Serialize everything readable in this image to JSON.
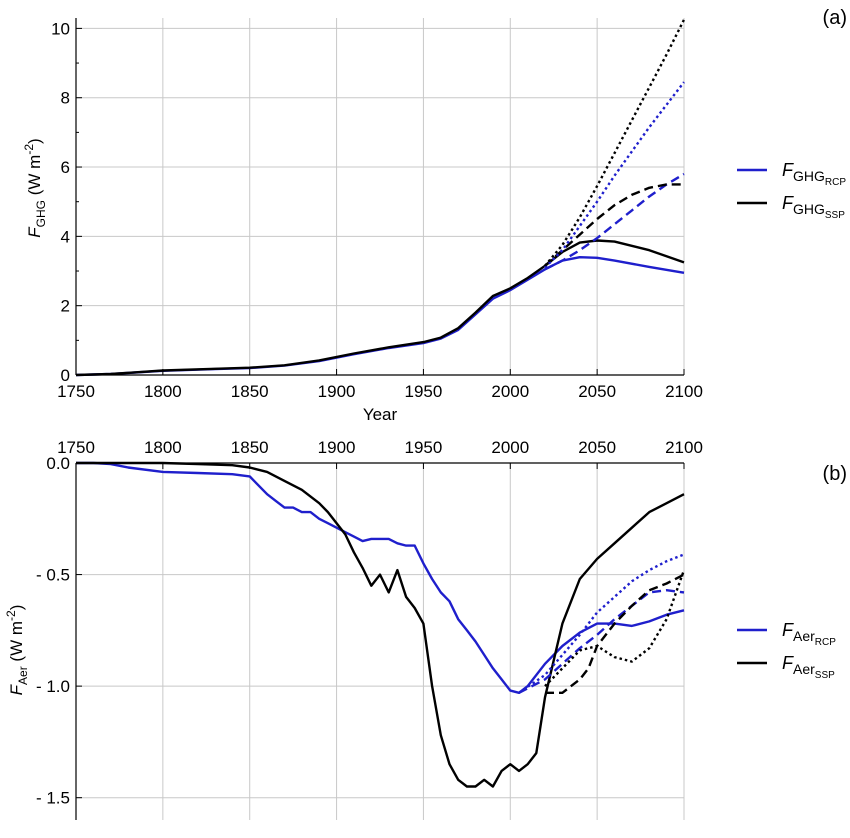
{
  "chart_data": [
    {
      "type": "line",
      "panel_label": "(a)",
      "xlabel": "Year",
      "ylabel": "F_GHG (W m^-2)",
      "ylabel_parts": {
        "main": "F",
        "sub": "GHG",
        "unit": " (W m",
        "sup": "-2",
        "close": ")"
      },
      "xlim": [
        1750,
        2100
      ],
      "ylim": [
        0,
        10.3
      ],
      "x_ticks": [
        "1750",
        "1800",
        "1850",
        "1900",
        "1950",
        "2000",
        "2050",
        "2100"
      ],
      "y_ticks": [
        "0",
        "2",
        "4",
        "6",
        "8",
        "10"
      ],
      "grid": true,
      "legend_position": "right",
      "legend": [
        {
          "main": "F",
          "sub": "GHG",
          "subsub": "RCP",
          "color": "#1f1fcc"
        },
        {
          "main": "F",
          "sub": "GHG",
          "subsub": "SSP",
          "color": "#000000"
        }
      ],
      "series": [
        {
          "family": "RCP",
          "style": "solid",
          "color": "#1f1fcc",
          "x": [
            1750,
            1770,
            1800,
            1830,
            1850,
            1870,
            1890,
            1910,
            1930,
            1950,
            1960,
            1970,
            1980,
            1990,
            2000,
            2010,
            2020,
            2030,
            2040,
            2050,
            2060,
            2080,
            2100
          ],
          "y": [
            0,
            0.03,
            0.12,
            0.17,
            0.2,
            0.27,
            0.4,
            0.6,
            0.78,
            0.92,
            1.05,
            1.3,
            1.75,
            2.2,
            2.45,
            2.75,
            3.05,
            3.3,
            3.4,
            3.38,
            3.3,
            3.12,
            2.95
          ]
        },
        {
          "family": "SSP",
          "style": "solid",
          "color": "#000000",
          "x": [
            1750,
            1770,
            1800,
            1830,
            1850,
            1870,
            1890,
            1910,
            1930,
            1950,
            1960,
            1970,
            1980,
            1990,
            2000,
            2010,
            2020,
            2030,
            2040,
            2050,
            2060,
            2080,
            2100
          ],
          "y": [
            0,
            0.03,
            0.13,
            0.18,
            0.21,
            0.28,
            0.42,
            0.62,
            0.8,
            0.95,
            1.08,
            1.35,
            1.8,
            2.28,
            2.5,
            2.8,
            3.15,
            3.55,
            3.82,
            3.88,
            3.85,
            3.6,
            3.25
          ]
        },
        {
          "family": "RCP",
          "style": "dashed",
          "color": "#1f1fcc",
          "x": [
            2020,
            2030,
            2040,
            2050,
            2060,
            2070,
            2080,
            2090,
            2100
          ],
          "y": [
            3.05,
            3.3,
            3.6,
            3.95,
            4.35,
            4.75,
            5.15,
            5.5,
            5.8
          ]
        },
        {
          "family": "SSP",
          "style": "dashed",
          "color": "#000000",
          "x": [
            2020,
            2030,
            2040,
            2050,
            2060,
            2070,
            2080,
            2090,
            2100
          ],
          "y": [
            3.15,
            3.6,
            4.05,
            4.5,
            4.9,
            5.2,
            5.4,
            5.5,
            5.5
          ]
        },
        {
          "family": "RCP",
          "style": "dotted",
          "color": "#1f1fcc",
          "x": [
            2020,
            2030,
            2040,
            2050,
            2060,
            2070,
            2080,
            2090,
            2100
          ],
          "y": [
            3.1,
            3.6,
            4.3,
            5.0,
            5.75,
            6.45,
            7.15,
            7.8,
            8.45
          ]
        },
        {
          "family": "SSP",
          "style": "dotted",
          "color": "#000000",
          "x": [
            2020,
            2030,
            2040,
            2050,
            2060,
            2070,
            2080,
            2090,
            2100
          ],
          "y": [
            3.15,
            3.75,
            4.55,
            5.45,
            6.4,
            7.35,
            8.3,
            9.25,
            10.25
          ]
        }
      ]
    },
    {
      "type": "line",
      "panel_label": "(b)",
      "ylabel": "F_Aer (W m^-2)",
      "ylabel_parts": {
        "main": "F",
        "sub": "Aer",
        "unit": " (W m",
        "sup": "-2",
        "close": ")"
      },
      "xlim": [
        1750,
        2100
      ],
      "ylim": [
        -1.6,
        0.0
      ],
      "x_ticks": [
        "1750",
        "1800",
        "1850",
        "1900",
        "1950",
        "2000",
        "2050",
        "2100"
      ],
      "x_tick_position": "top",
      "y_ticks": [
        "0.0",
        "- 0.5",
        "- 1.0",
        "- 1.5"
      ],
      "y_tick_values": [
        0.0,
        -0.5,
        -1.0,
        -1.5
      ],
      "grid": true,
      "legend_position": "right",
      "legend": [
        {
          "main": "F",
          "sub": "Aer",
          "subsub": "RCP",
          "color": "#1f1fcc"
        },
        {
          "main": "F",
          "sub": "Aer",
          "subsub": "SSP",
          "color": "#000000"
        }
      ],
      "series": [
        {
          "family": "RCP",
          "style": "solid",
          "color": "#1f1fcc",
          "x": [
            1750,
            1760,
            1770,
            1780,
            1800,
            1820,
            1840,
            1850,
            1855,
            1860,
            1865,
            1870,
            1875,
            1880,
            1885,
            1890,
            1895,
            1900,
            1905,
            1910,
            1915,
            1920,
            1925,
            1930,
            1935,
            1940,
            1945,
            1950,
            1955,
            1960,
            1965,
            1970,
            1975,
            1980,
            1985,
            1990,
            1995,
            2000,
            2005,
            2010,
            2020,
            2030,
            2040,
            2050,
            2060,
            2070,
            2080,
            2090,
            2100
          ],
          "y": [
            0,
            0,
            -0.005,
            -0.02,
            -0.04,
            -0.045,
            -0.05,
            -0.06,
            -0.1,
            -0.14,
            -0.17,
            -0.2,
            -0.2,
            -0.22,
            -0.22,
            -0.25,
            -0.27,
            -0.29,
            -0.31,
            -0.33,
            -0.35,
            -0.34,
            -0.34,
            -0.34,
            -0.36,
            -0.37,
            -0.37,
            -0.45,
            -0.52,
            -0.58,
            -0.62,
            -0.7,
            -0.75,
            -0.8,
            -0.86,
            -0.92,
            -0.97,
            -1.02,
            -1.03,
            -1.0,
            -0.9,
            -0.82,
            -0.76,
            -0.72,
            -0.72,
            -0.73,
            -0.71,
            -0.68,
            -0.66
          ]
        },
        {
          "family": "SSP",
          "style": "solid",
          "color": "#000000",
          "x": [
            1750,
            1780,
            1800,
            1820,
            1840,
            1850,
            1860,
            1870,
            1880,
            1890,
            1895,
            1900,
            1905,
            1910,
            1915,
            1920,
            1925,
            1930,
            1935,
            1940,
            1945,
            1950,
            1955,
            1960,
            1965,
            1970,
            1975,
            1980,
            1985,
            1990,
            1995,
            2000,
            2005,
            2010,
            2015,
            2020,
            2030,
            2040,
            2050,
            2060,
            2070,
            2080,
            2090,
            2100
          ],
          "y": [
            0,
            0,
            0,
            -0.005,
            -0.01,
            -0.02,
            -0.04,
            -0.08,
            -0.12,
            -0.18,
            -0.22,
            -0.27,
            -0.32,
            -0.4,
            -0.47,
            -0.55,
            -0.5,
            -0.58,
            -0.48,
            -0.6,
            -0.65,
            -0.72,
            -1.0,
            -1.22,
            -1.35,
            -1.42,
            -1.45,
            -1.45,
            -1.42,
            -1.45,
            -1.38,
            -1.35,
            -1.38,
            -1.35,
            -1.3,
            -1.05,
            -0.72,
            -0.52,
            -0.43,
            -0.36,
            -0.29,
            -0.22,
            -0.18,
            -0.14
          ]
        },
        {
          "family": "RCP",
          "style": "dashed",
          "color": "#1f1fcc",
          "x": [
            2005,
            2020,
            2030,
            2040,
            2050,
            2060,
            2070,
            2080,
            2090,
            2100
          ],
          "y": [
            -1.03,
            -0.97,
            -0.9,
            -0.83,
            -0.77,
            -0.7,
            -0.64,
            -0.58,
            -0.57,
            -0.58
          ]
        },
        {
          "family": "SSP",
          "style": "dashed",
          "color": "#000000",
          "x": [
            2020,
            2030,
            2040,
            2045,
            2050,
            2060,
            2070,
            2080,
            2090,
            2100
          ],
          "y": [
            -1.03,
            -1.03,
            -0.97,
            -0.92,
            -0.82,
            -0.72,
            -0.64,
            -0.57,
            -0.54,
            -0.5
          ]
        },
        {
          "family": "RCP",
          "style": "dotted",
          "color": "#1f1fcc",
          "x": [
            2005,
            2020,
            2030,
            2040,
            2050,
            2060,
            2070,
            2080,
            2090,
            2100
          ],
          "y": [
            -1.03,
            -0.95,
            -0.86,
            -0.77,
            -0.67,
            -0.6,
            -0.53,
            -0.48,
            -0.44,
            -0.41
          ]
        },
        {
          "family": "SSP",
          "style": "dotted",
          "color": "#000000",
          "x": [
            2020,
            2030,
            2040,
            2050,
            2060,
            2070,
            2080,
            2090,
            2100
          ],
          "y": [
            -1.0,
            -0.92,
            -0.84,
            -0.82,
            -0.87,
            -0.89,
            -0.83,
            -0.7,
            -0.48
          ]
        }
      ]
    }
  ]
}
